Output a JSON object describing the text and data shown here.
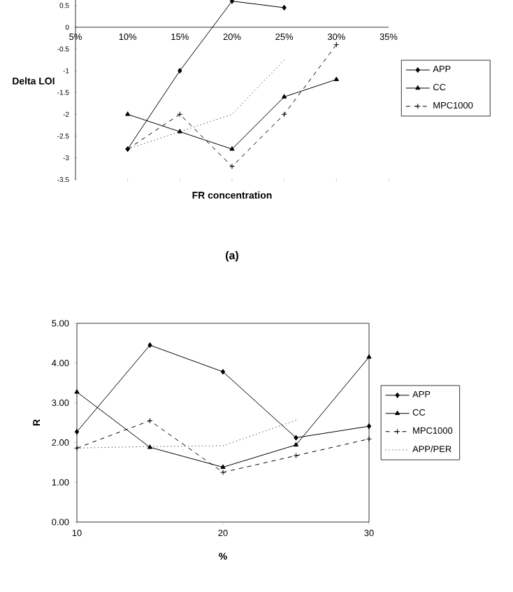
{
  "chart_data": [
    {
      "type": "line",
      "xlabel": "FR concentration",
      "ylabel": "Delta LOI",
      "annotations": [
        "(a)"
      ],
      "x": [
        10,
        15,
        20,
        25,
        30
      ],
      "xlim": [
        5,
        35
      ],
      "xticks": [
        {
          "value": 5,
          "label": "5%"
        },
        {
          "value": 10,
          "label": "10%"
        },
        {
          "value": 15,
          "label": "15%"
        },
        {
          "value": 20,
          "label": "20%"
        },
        {
          "value": 25,
          "label": "25%"
        },
        {
          "value": 30,
          "label": "30%"
        },
        {
          "value": 35,
          "label": "35%"
        }
      ],
      "ylim": [
        -3.5,
        0.7
      ],
      "yticks": [
        0.5,
        0,
        -0.5,
        -1,
        -1.5,
        -2,
        -2.5,
        -3,
        -3.5
      ],
      "legend": "right",
      "series": [
        {
          "name": "APP",
          "color": "#000000",
          "marker": "diamond",
          "line_style": "solid",
          "values": [
            -2.8,
            -1.0,
            0.6,
            0.45,
            null
          ]
        },
        {
          "name": "CC",
          "color": "#000000",
          "marker": "triangle",
          "line_style": "solid",
          "values": [
            -2.0,
            -2.4,
            -2.8,
            -1.6,
            -1.2
          ]
        },
        {
          "name": "MPC1000",
          "color": "#000000",
          "marker": "cross",
          "line_style": "dashed",
          "values": [
            -2.8,
            -2.0,
            -3.2,
            -2.0,
            -0.4
          ]
        },
        {
          "color": "#000000",
          "marker": "none",
          "line_style": "dotted",
          "values": [
            -2.8,
            -2.4,
            -2.0,
            -0.75,
            null
          ]
        }
      ]
    },
    {
      "type": "line",
      "xlabel": "%",
      "ylabel": "R",
      "x": [
        10,
        15,
        20,
        25,
        30
      ],
      "xlim": [
        10,
        30
      ],
      "xticks": [
        10,
        20,
        30
      ],
      "ylim": [
        0,
        5
      ],
      "yticks": [
        {
          "value": 0,
          "label": "0.00"
        },
        {
          "value": 1,
          "label": "1.00"
        },
        {
          "value": 2,
          "label": "2.00"
        },
        {
          "value": 3,
          "label": "3.00"
        },
        {
          "value": 4,
          "label": "4.00"
        },
        {
          "value": 5,
          "label": "5.00"
        }
      ],
      "legend": "right",
      "series": [
        {
          "name": "APP",
          "color": "#000000",
          "marker": "diamond",
          "line_style": "solid",
          "values": [
            2.27,
            4.45,
            3.78,
            2.12,
            2.41
          ]
        },
        {
          "name": "CC",
          "color": "#000000",
          "marker": "triangle",
          "line_style": "solid",
          "values": [
            3.27,
            1.88,
            1.38,
            1.94,
            4.15
          ]
        },
        {
          "name": "MPC1000",
          "color": "#000000",
          "marker": "cross",
          "line_style": "dashed",
          "values": [
            1.86,
            2.55,
            1.25,
            1.67,
            2.09
          ]
        },
        {
          "name": "APP/PER",
          "color": "#000000",
          "marker": "none",
          "line_style": "dotted",
          "values": [
            1.86,
            1.9,
            1.92,
            2.56,
            null
          ]
        }
      ]
    }
  ]
}
